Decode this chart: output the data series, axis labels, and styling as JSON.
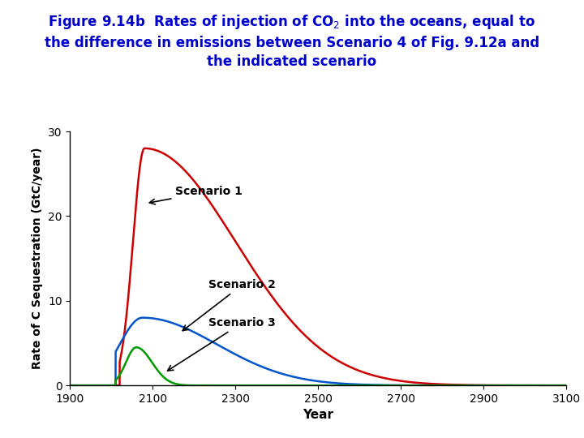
{
  "xlabel": "Year",
  "ylabel": "Rate of C Sequestration (GtC/year)",
  "xlim": [
    1900,
    3100
  ],
  "ylim": [
    0,
    30
  ],
  "xticks": [
    1900,
    2100,
    2300,
    2500,
    2700,
    2900,
    3100
  ],
  "yticks": [
    0,
    10,
    20,
    30
  ],
  "title_color": "#0000CC",
  "scenario1_color": "#CC0000",
  "scenario2_color": "#0055CC",
  "scenario3_color": "#009900",
  "background_color": "#ffffff",
  "title_fontsize": 12,
  "axis_label_fontsize": 11,
  "tick_fontsize": 10,
  "annot_fontsize": 10
}
